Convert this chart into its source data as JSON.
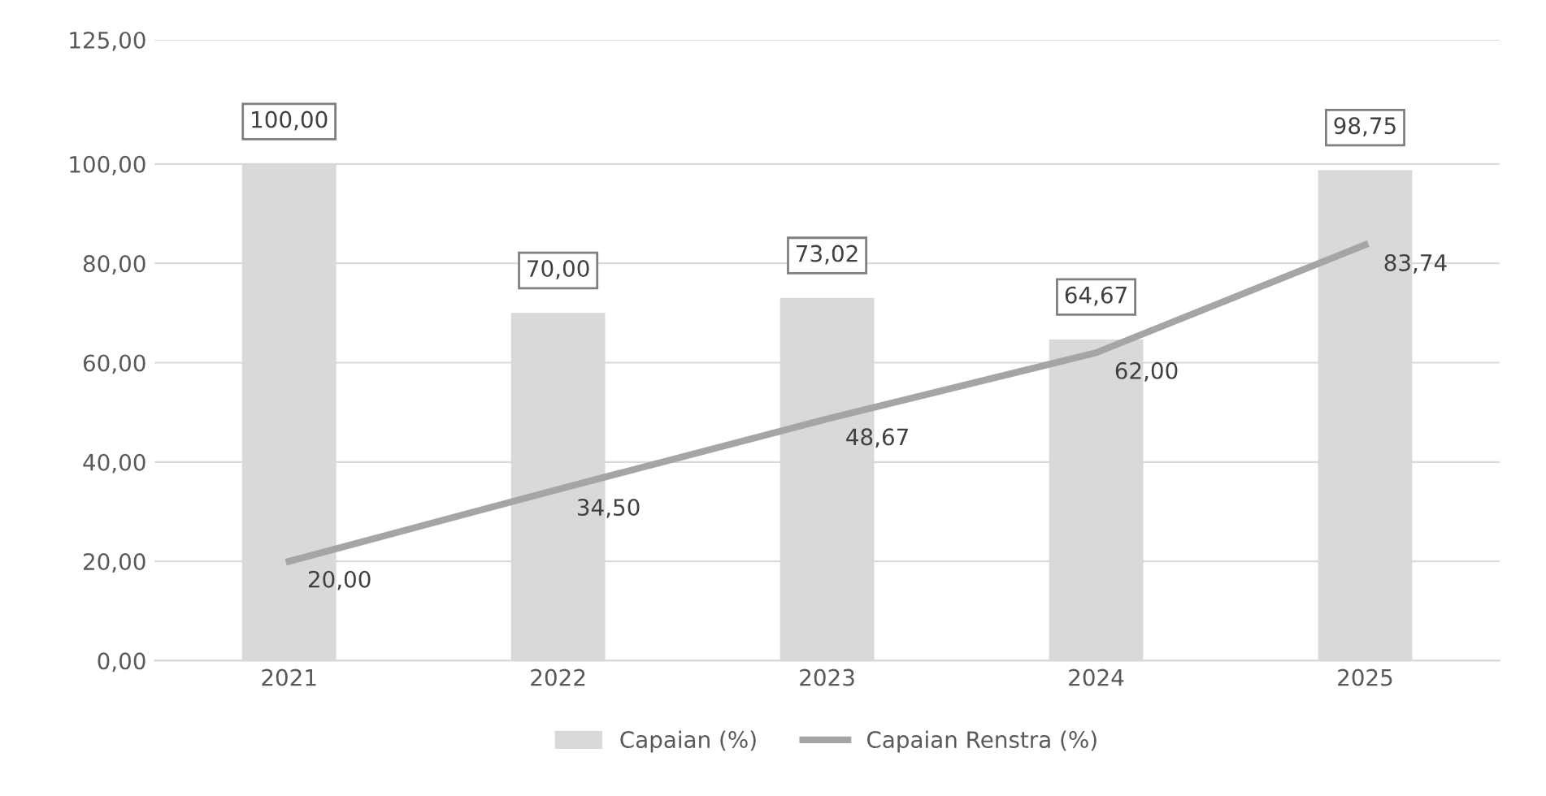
{
  "chart_data": {
    "type": "bar",
    "categories": [
      "2021",
      "2022",
      "2023",
      "2024",
      "2025"
    ],
    "series": [
      {
        "name": "Capaian (%)",
        "color": "#d9d9d9",
        "values": [
          100.0,
          70.0,
          73.02,
          64.67,
          98.75
        ],
        "value_labels": [
          "100,00",
          "70,00",
          "73,02",
          "64,67",
          "98,75"
        ]
      },
      {
        "name": "Capaian Renstra (%)",
        "type": "line",
        "color": "#a5a5a5",
        "marker": "none",
        "values": [
          20.0,
          34.5,
          48.67,
          62.0,
          83.74
        ],
        "value_labels": [
          "20,00",
          "34,50",
          "48,67",
          "62,00",
          "83,74"
        ]
      }
    ],
    "ylim": [
      0,
      125
    ],
    "yticks": [
      {
        "value": 0,
        "label": "0,00"
      },
      {
        "value": 20,
        "label": "20,00"
      },
      {
        "value": 40,
        "label": "40,00"
      },
      {
        "value": 60,
        "label": "60,00"
      },
      {
        "value": 80,
        "label": "80,00"
      },
      {
        "value": 100,
        "label": "100,00"
      },
      {
        "value": 125,
        "label": "125,00"
      }
    ],
    "grid": "y",
    "legend": "bottom"
  }
}
